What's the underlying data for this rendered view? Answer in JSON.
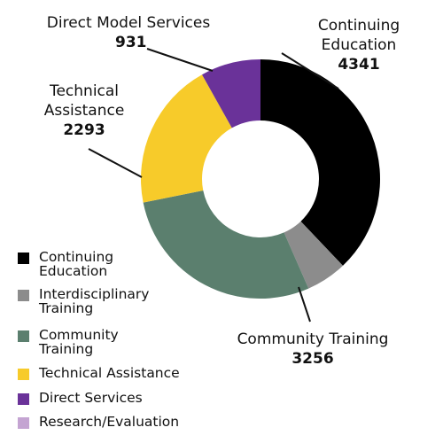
{
  "chart_data": {
    "type": "pie",
    "hole": true,
    "categories": [
      "Continuing Education",
      "Interdisciplinary Training",
      "Community Training",
      "Technical Assistance",
      "Direct Services",
      "Research/Evaluation"
    ],
    "values": [
      4341,
      631,
      3256,
      2293,
      931,
      0
    ],
    "colors": [
      "#000000",
      "#8c8c8c",
      "#5b7f6e",
      "#f7cb2a",
      "#6a3299",
      "#c4a4d2"
    ],
    "callouts": [
      {
        "category": "Continuing\nEducation",
        "value": "4341"
      },
      {
        "category": "Community Training",
        "value": "3256"
      },
      {
        "category": "Technical\nAssistance",
        "value": "2293"
      },
      {
        "category": "Direct Model Services",
        "value": "931"
      }
    ],
    "legend": [
      {
        "label": "Continuing\nEducation",
        "color": "#000000"
      },
      {
        "label": "Interdisciplinary\nTraining",
        "color": "#8c8c8c"
      },
      {
        "label": " Community\n Training",
        "color": "#5b7f6e"
      },
      {
        "label": "Technical Assistance",
        "color": "#f7cb2a"
      },
      {
        "label": "Direct Services",
        "color": "#6a3299"
      },
      {
        "label": "Research/Evaluation",
        "color": "#c4a4d2"
      }
    ]
  }
}
